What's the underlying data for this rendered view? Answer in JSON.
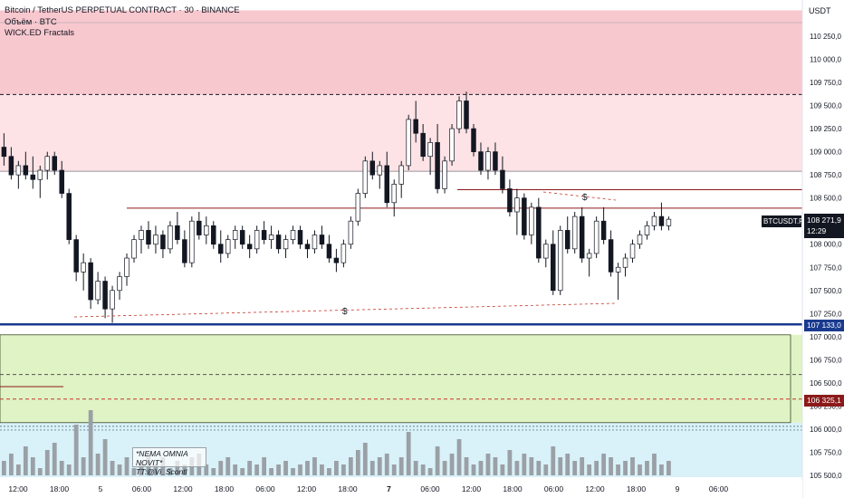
{
  "header": {
    "title": "Bitcoin / TetherUS PERPETUAL CONTRACT · 30 · BINANCE",
    "indicator1": "Объём · BTC",
    "indicator2": "WICK.ED Fractals"
  },
  "currency_label": "USDT",
  "overlay_text": {
    "line1": "*NEMA OMNIA NOVIT*",
    "line2": "TT:@Vi_Scontl"
  },
  "tags": {
    "symbol": "BTCUSDT.P",
    "current_price": "108 271,9",
    "countdown": "12:29",
    "level_blue": "107 133,0",
    "level_red": "106 325,1"
  },
  "annotations": {
    "dollar_top": "$",
    "dollar_bottom": "$"
  },
  "colors": {
    "bear_zone": "#f8c8cf",
    "bull_zone": "#e0f3c4",
    "volume_zone": "#d9f1f8",
    "level_blue": "#1a3a8f",
    "level_red": "#8b1a1a",
    "candle": "#131722",
    "axis_text": "#131722"
  },
  "chart_data": {
    "type": "candlestick",
    "price_axis": {
      "min": 105500,
      "max": 110250,
      "ticks": [
        110250,
        110000,
        109750,
        109500,
        109250,
        109000,
        108750,
        108500,
        108250,
        108000,
        107750,
        107500,
        107250,
        107000,
        106750,
        106500,
        106250,
        106000,
        105750,
        105500
      ],
      "tick_labels": [
        "110 250,0",
        "110 000,0",
        "109 750,0",
        "109 500,0",
        "109 250,0",
        "109 000,0",
        "108 750,0",
        "108 500,0",
        "108 250,0",
        "108 000,0",
        "107 750,0",
        "107 500,0",
        "107 250,0",
        "107 000,0",
        "106 750,0",
        "106 500,0",
        "106 250,0",
        "106 000,0",
        "105 750,0",
        "105 500,0"
      ]
    },
    "time_axis": {
      "labels": [
        "12:00",
        "18:00",
        "5",
        "06:00",
        "12:00",
        "18:00",
        "06:00",
        "12:00",
        "18:00",
        "7",
        "06:00",
        "12:00",
        "18:00",
        "06:00",
        "12:00",
        "18:00",
        "9",
        "06:00"
      ]
    },
    "zones": [
      {
        "name": "bear_zone",
        "from": 109620,
        "to": 110530,
        "color": "#f8c8cf"
      },
      {
        "name": "bear_zone_light",
        "from": 108780,
        "to": 109620,
        "color": "#fde3e6"
      },
      {
        "name": "bull_zone",
        "from": 106070,
        "to": 107020,
        "color": "#e0f3c4"
      },
      {
        "name": "volume_zone",
        "from": 105480,
        "to": 106070,
        "color": "#d9f1f8"
      }
    ],
    "levels": [
      {
        "value": 109620,
        "style": "dashed",
        "color": "#131722"
      },
      {
        "value": 108790,
        "style": "solid",
        "color": "#9aa0a6"
      },
      {
        "value": 108590,
        "style": "solid",
        "color": "#8b1a1a"
      },
      {
        "value": 108390,
        "style": "solid",
        "color": "#8b1a1a"
      },
      {
        "value": 107133,
        "style": "solid-thick",
        "color": "#1a3a8f"
      },
      {
        "value": 106325,
        "style": "dashed",
        "color": "#c0392b"
      },
      {
        "value": 106590,
        "style": "dashed",
        "color": "#555555"
      }
    ],
    "candles": [
      [
        109050,
        109200,
        108850,
        108950
      ],
      [
        108950,
        109050,
        108700,
        108750
      ],
      [
        108750,
        108900,
        108600,
        108850
      ],
      [
        108850,
        109000,
        108700,
        108750
      ],
      [
        108750,
        108950,
        108600,
        108700
      ],
      [
        108700,
        108850,
        108500,
        108800
      ],
      [
        108800,
        109000,
        108700,
        108950
      ],
      [
        108950,
        109000,
        108750,
        108800
      ],
      [
        108800,
        108900,
        108500,
        108550
      ],
      [
        108550,
        108600,
        108000,
        108050
      ],
      [
        108050,
        108100,
        107600,
        107700
      ],
      [
        107700,
        107900,
        107500,
        107800
      ],
      [
        107800,
        107850,
        107300,
        107400
      ],
      [
        107400,
        107700,
        107350,
        107600
      ],
      [
        107600,
        107650,
        107200,
        107300
      ],
      [
        107300,
        107550,
        107150,
        107500
      ],
      [
        107500,
        107700,
        107400,
        107650
      ],
      [
        107650,
        107900,
        107550,
        107850
      ],
      [
        107850,
        108100,
        107800,
        108050
      ],
      [
        108050,
        108200,
        107900,
        108150
      ],
      [
        108150,
        108250,
        107950,
        108000
      ],
      [
        108000,
        108200,
        107900,
        108100
      ],
      [
        108100,
        108150,
        107850,
        107950
      ],
      [
        107950,
        108250,
        107900,
        108200
      ],
      [
        108200,
        108350,
        108000,
        108050
      ],
      [
        108050,
        108150,
        107750,
        107800
      ],
      [
        107800,
        108300,
        107750,
        108250
      ],
      [
        108250,
        108350,
        108050,
        108100
      ],
      [
        108100,
        108300,
        108000,
        108200
      ],
      [
        108200,
        108250,
        107950,
        108000
      ],
      [
        108000,
        108150,
        107800,
        107900
      ],
      [
        107900,
        108100,
        107850,
        108050
      ],
      [
        108050,
        108200,
        107950,
        108150
      ],
      [
        108150,
        108200,
        107950,
        108000
      ],
      [
        108000,
        108100,
        107850,
        107950
      ],
      [
        107950,
        108200,
        107900,
        108150
      ],
      [
        108150,
        108250,
        108000,
        108050
      ],
      [
        108050,
        108200,
        107950,
        108100
      ],
      [
        108100,
        108150,
        107900,
        107950
      ],
      [
        107950,
        108100,
        107850,
        108050
      ],
      [
        108050,
        108200,
        108000,
        108150
      ],
      [
        108150,
        108200,
        107950,
        108000
      ],
      [
        108000,
        108050,
        107850,
        107950
      ],
      [
        107950,
        108150,
        107900,
        108100
      ],
      [
        108100,
        108200,
        107950,
        108000
      ],
      [
        108000,
        108100,
        107800,
        107850
      ],
      [
        107850,
        107950,
        107700,
        107800
      ],
      [
        107800,
        108050,
        107750,
        108000
      ],
      [
        108000,
        108300,
        107950,
        108250
      ],
      [
        108250,
        108600,
        108200,
        108550
      ],
      [
        108550,
        108950,
        108500,
        108900
      ],
      [
        108900,
        109000,
        108700,
        108750
      ],
      [
        108750,
        108900,
        108600,
        108850
      ],
      [
        108850,
        109000,
        108400,
        108450
      ],
      [
        108450,
        108700,
        108300,
        108650
      ],
      [
        108650,
        108900,
        108500,
        108850
      ],
      [
        108850,
        109400,
        108800,
        109350
      ],
      [
        109350,
        109550,
        109100,
        109200
      ],
      [
        109200,
        109300,
        108900,
        108950
      ],
      [
        108950,
        109150,
        108750,
        109100
      ],
      [
        109100,
        109300,
        108550,
        108600
      ],
      [
        108600,
        108950,
        108550,
        108900
      ],
      [
        108900,
        109300,
        108850,
        109250
      ],
      [
        109250,
        109600,
        109200,
        109550
      ],
      [
        109550,
        109650,
        109200,
        109250
      ],
      [
        109250,
        109300,
        108950,
        109000
      ],
      [
        109000,
        109100,
        108750,
        108800
      ],
      [
        108800,
        109050,
        108700,
        109000
      ],
      [
        109000,
        109100,
        108750,
        108800
      ],
      [
        108800,
        108950,
        108550,
        108600
      ],
      [
        108600,
        108700,
        108300,
        108350
      ],
      [
        108350,
        108600,
        108100,
        108500
      ],
      [
        108500,
        108550,
        108050,
        108100
      ],
      [
        108100,
        108450,
        108000,
        108400
      ],
      [
        108400,
        108500,
        107800,
        107850
      ],
      [
        107850,
        108050,
        107750,
        108000
      ],
      [
        108000,
        108150,
        107450,
        107500
      ],
      [
        107500,
        108200,
        107450,
        108150
      ],
      [
        108150,
        108300,
        107900,
        107950
      ],
      [
        107950,
        108350,
        107900,
        108300
      ],
      [
        108300,
        108400,
        107800,
        107850
      ],
      [
        107850,
        107950,
        107650,
        107900
      ],
      [
        107900,
        108300,
        107850,
        108250
      ],
      [
        108250,
        108400,
        108000,
        108050
      ],
      [
        108050,
        108150,
        107650,
        107700
      ],
      [
        107700,
        107800,
        107400,
        107750
      ],
      [
        107750,
        107900,
        107650,
        107850
      ],
      [
        107850,
        108050,
        107800,
        108000
      ],
      [
        108000,
        108150,
        107950,
        108100
      ],
      [
        108100,
        108250,
        108050,
        108200
      ],
      [
        108200,
        108350,
        108150,
        108300
      ],
      [
        108300,
        108450,
        108150,
        108200
      ],
      [
        108200,
        108300,
        108150,
        108270
      ]
    ]
  }
}
